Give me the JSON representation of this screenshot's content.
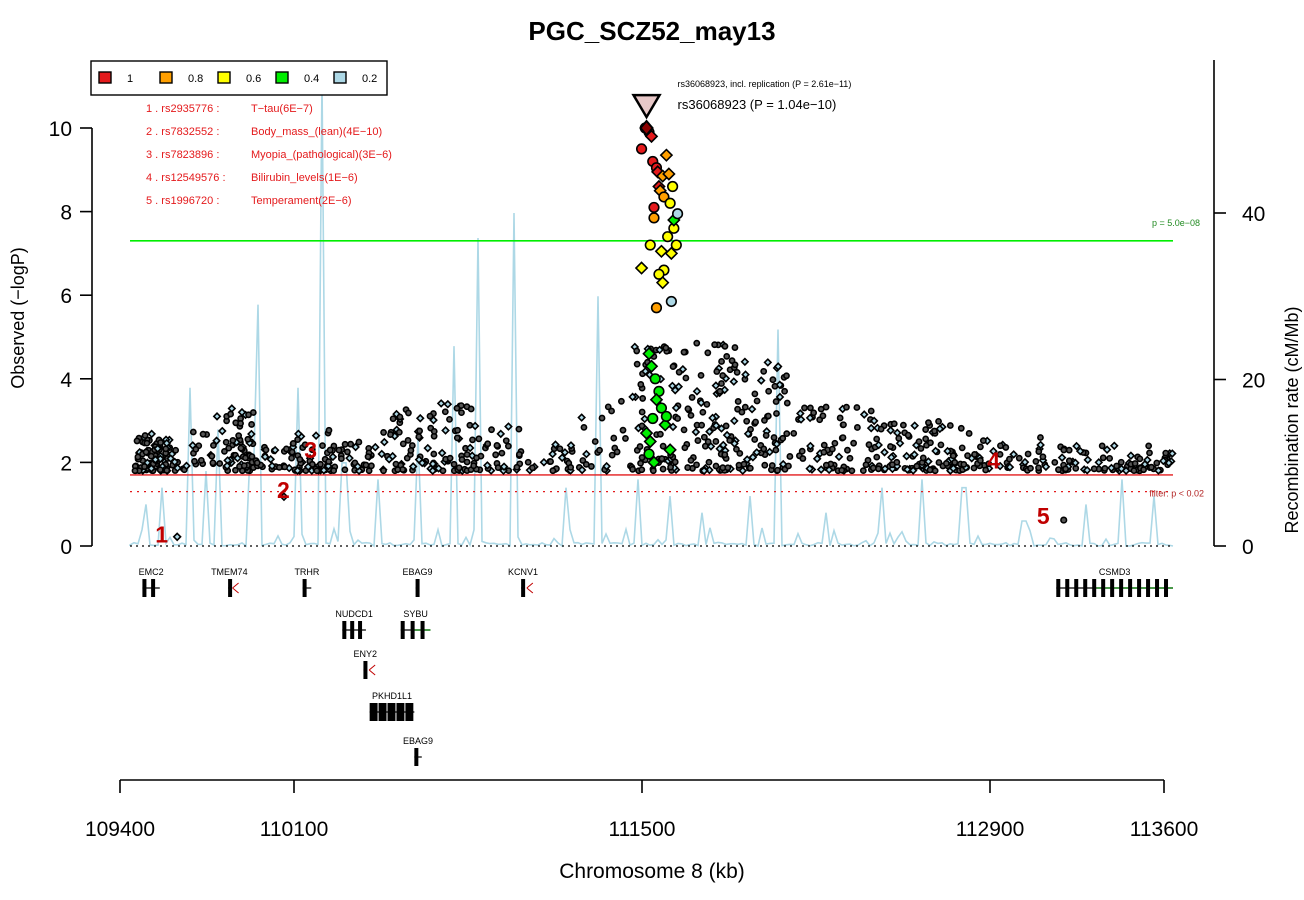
{
  "chart_data": {
    "type": "scatter",
    "title": "PGC_SCZ52_may13",
    "xlabel": "Chromosome 8 (kb)",
    "ylabel": "Observed (−logP)",
    "y2label": "Recombination rate (cM/Mb)",
    "xlim": [
      109400,
      113600
    ],
    "ylim": [
      0,
      10
    ],
    "y2lim": [
      0,
      40
    ],
    "xticks": [
      "109400",
      "110100",
      "111500",
      "112900",
      "113600"
    ],
    "xtick_values": [
      109400,
      110100,
      111500,
      112900,
      113600
    ],
    "yticks": [
      "0",
      "2",
      "4",
      "6",
      "8",
      "10"
    ],
    "y2ticks": [
      "0",
      "20",
      "40"
    ],
    "legend": {
      "placement": "top-left",
      "entries": [
        {
          "label": "1",
          "color": "#e41a1c"
        },
        {
          "label": "0.8",
          "color": "#ff9f00"
        },
        {
          "label": "0.6",
          "color": "#ffff00"
        },
        {
          "label": "0.4",
          "color": "#00ee00"
        },
        {
          "label": "0.2",
          "color": "#add8e6"
        }
      ]
    },
    "annotations": [
      {
        "label": "1 . rs2935776 :",
        "trait": "T−tau(6E−7)"
      },
      {
        "label": "2 . rs7832552 :",
        "trait": "Body_mass_(lean)(4E−10)"
      },
      {
        "label": "3 . rs7823896 :",
        "trait": "Myopia_(pathological)(3E−6)"
      },
      {
        "label": "4 . rs12549576 :",
        "trait": "Bilirubin_levels(1E−6)"
      },
      {
        "label": "5 . rs1996720 :",
        "trait": "Temperament(2E−6)"
      }
    ],
    "markers": [
      {
        "id": "1",
        "x": 109530,
        "y": 0.18
      },
      {
        "id": "2",
        "x": 110020,
        "y": 1.25
      },
      {
        "id": "3",
        "x": 110130,
        "y": 2.2
      },
      {
        "id": "4",
        "x": 112880,
        "y": 1.95
      },
      {
        "id": "5",
        "x": 113080,
        "y": 0.62
      }
    ],
    "lead_snp": {
      "name": "rs36068923",
      "x": 111480,
      "y": 10.0,
      "label": "rs36068923 (P = 1.04e−10)",
      "replication_label": "rs36068923, incl. replication (P = 2.61e−11)",
      "replication_y": 10.5
    },
    "thresholds": [
      {
        "label": "p = 5.0e−08",
        "y": 7.3,
        "color": "#00ee00"
      },
      {
        "label": "",
        "y": 1.7,
        "color": "#e41a1c"
      },
      {
        "label": "filter: p < 0.02",
        "y": 1.3,
        "color": "#e41a1c"
      }
    ],
    "recomb_peaks": [
      {
        "x": 109460,
        "y": 5
      },
      {
        "x": 109530,
        "y": 7
      },
      {
        "x": 109640,
        "y": 19
      },
      {
        "x": 109700,
        "y": 9
      },
      {
        "x": 109760,
        "y": 14
      },
      {
        "x": 109890,
        "y": 11
      },
      {
        "x": 109920,
        "y": 29
      },
      {
        "x": 110080,
        "y": 19
      },
      {
        "x": 110170,
        "y": 57
      },
      {
        "x": 110260,
        "y": 10
      },
      {
        "x": 110400,
        "y": 8
      },
      {
        "x": 110560,
        "y": 13
      },
      {
        "x": 110700,
        "y": 24
      },
      {
        "x": 110800,
        "y": 37
      },
      {
        "x": 110950,
        "y": 40
      },
      {
        "x": 111150,
        "y": 7
      },
      {
        "x": 111280,
        "y": 30
      },
      {
        "x": 111450,
        "y": 8
      },
      {
        "x": 111570,
        "y": 6
      },
      {
        "x": 111700,
        "y": 4
      },
      {
        "x": 111900,
        "y": 6
      },
      {
        "x": 112010,
        "y": 26
      },
      {
        "x": 112200,
        "y": 4
      },
      {
        "x": 112430,
        "y": 7
      },
      {
        "x": 112590,
        "y": 8
      },
      {
        "x": 112760,
        "y": 7
      },
      {
        "x": 113000,
        "y": 3
      },
      {
        "x": 113250,
        "y": 5
      },
      {
        "x": 113400,
        "y": 8
      },
      {
        "x": 113520,
        "y": 6
      }
    ],
    "genes": [
      {
        "name": "EMC2",
        "start": 109450,
        "end": 109520,
        "row": 0
      },
      {
        "name": "TMEM74",
        "start": 109795,
        "end": 109805,
        "row": 0
      },
      {
        "name": "TRHR",
        "start": 110095,
        "end": 110130,
        "row": 0
      },
      {
        "name": "EBAG9",
        "start": 110550,
        "end": 110565,
        "row": 0
      },
      {
        "name": "KCNV1",
        "start": 110975,
        "end": 110990,
        "row": 0
      },
      {
        "name": "CSMD3",
        "start": 113130,
        "end": 113600,
        "row": 0
      },
      {
        "name": "NUDCD1",
        "start": 110255,
        "end": 110350,
        "row": 1
      },
      {
        "name": "SYBU",
        "start": 110490,
        "end": 110610,
        "row": 1
      },
      {
        "name": "ENY2",
        "start": 110340,
        "end": 110355,
        "row": 2
      },
      {
        "name": "PKHD1L1",
        "start": 110365,
        "end": 110545,
        "row": 3
      },
      {
        "name": "EBAG9",
        "start": 110545,
        "end": 110575,
        "row": 4
      }
    ]
  }
}
